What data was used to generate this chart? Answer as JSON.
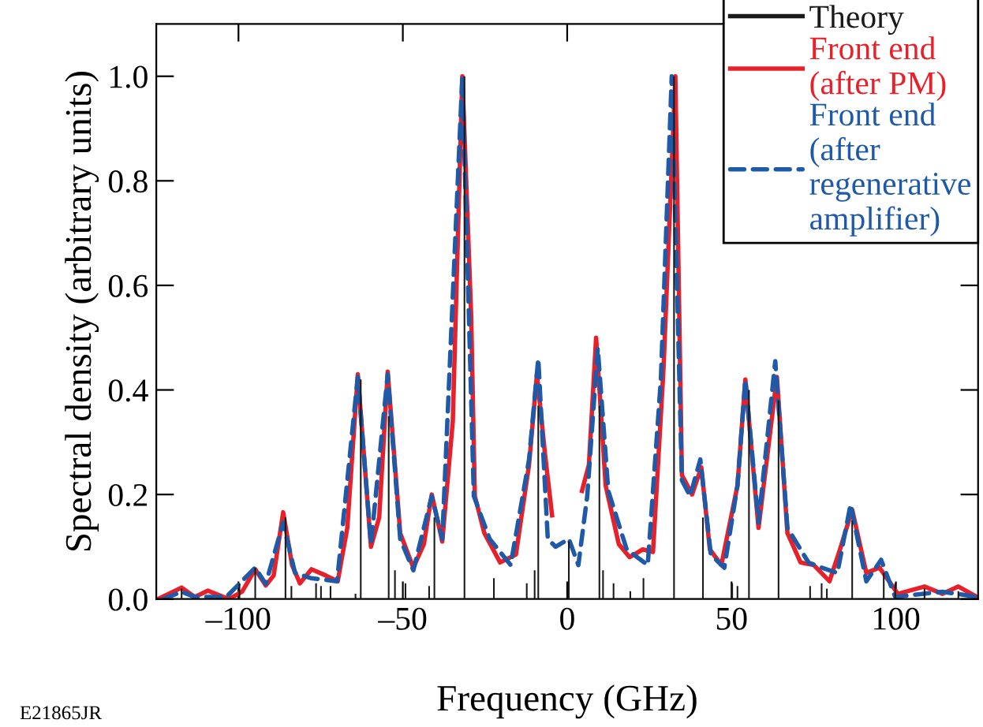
{
  "chart_data": {
    "type": "line",
    "xlabel": "Frequency (GHz)",
    "ylabel": "Spectral density (arbitrary units)",
    "xlim": [
      -125,
      125
    ],
    "ylim": [
      0,
      1.1
    ],
    "xticks": [
      {
        "value": -100,
        "label": "–100"
      },
      {
        "value": -50,
        "label": "–50"
      },
      0,
      50,
      100
    ],
    "yticks": [
      {
        "value": 0,
        "label": "0.0"
      },
      0.2,
      0.4,
      0.6,
      0.8,
      {
        "value": 1,
        "label": "1.0"
      }
    ],
    "grid": false,
    "legend": "top right",
    "marker": "none",
    "annotations": [
      "E21865JR"
    ],
    "series": [
      {
        "name": "Theory",
        "type": "bar",
        "color": "#1a1a1a",
        "x": [
          -117.3,
          -99.7,
          -94.9,
          -85.7,
          -83.9,
          -76.4,
          -74.9,
          -72.0,
          -64.4,
          -62.8,
          -54.3,
          -52.4,
          -49.2,
          -42.0,
          -40.4,
          -31.25,
          -22.3,
          -12.3,
          -9.9,
          -8.8,
          0.5,
          9.8,
          10.9,
          14.1,
          19.2,
          23.2,
          32.5,
          41.3,
          50.2,
          51.8,
          55.3,
          64.3,
          73.9,
          77.4,
          79.0,
          86.7,
          96.3,
          99.8,
          108.7,
          119.0
        ],
        "values": [
          0.02,
          0.03,
          0.06,
          0.156,
          0.025,
          0.03,
          0.025,
          0.025,
          0.01,
          0.42,
          0.35,
          0.055,
          0.03,
          0.025,
          0.156,
          1.0,
          0.04,
          0.03,
          0.055,
          0.37,
          0.11,
          0.37,
          0.055,
          0.03,
          0.015,
          0.04,
          1.0,
          0.156,
          0.03,
          0.025,
          0.4,
          0.38,
          0.025,
          0.03,
          0.02,
          0.15,
          0.05,
          0.03,
          0.02,
          0.015
        ]
      },
      {
        "name": "Front end\n(after PM)",
        "color": "#e8202a",
        "line_style": "solid",
        "x": [
          -124.5,
          -117.3,
          -113.3,
          -109.3,
          -102.9,
          -98.9,
          -94.9,
          -91.7,
          -89.3,
          -86.4,
          -83.7,
          -81.3,
          -77.8,
          -73.4,
          -69.8,
          -66.9,
          -63.7,
          -59.7,
          -57.2,
          -54.6,
          -50.8,
          -46.8,
          -43.6,
          -41.2,
          -38.0,
          -34.8,
          -31.9,
          -29.2,
          -28.1,
          -25.2,
          -20.4,
          -15.6,
          -11.6,
          -9.2,
          -6.8,
          -4.6,
          null,
          4.5,
          6.6,
          8.8,
          11.7,
          15.7,
          19.0,
          23.0,
          26.1,
          29.3,
          32.9,
          34.9,
          38.0,
          40.8,
          43.4,
          46.9,
          51.8,
          54.2,
          58.2,
          63.8,
          67.0,
          71.0,
          75.0,
          79.8,
          83.0,
          86.7,
          91.0,
          95.0,
          100.6,
          108.7,
          114.2,
          119.0,
          124.7
        ],
        "values": [
          0.0,
          0.022,
          0.004,
          0.016,
          0.0,
          0.014,
          0.057,
          0.026,
          0.045,
          0.166,
          0.065,
          0.03,
          0.057,
          0.045,
          0.034,
          0.136,
          0.43,
          0.1,
          0.156,
          0.435,
          0.126,
          0.06,
          0.105,
          0.2,
          0.11,
          0.34,
          1.0,
          0.54,
          0.197,
          0.126,
          0.07,
          0.085,
          0.257,
          0.43,
          0.28,
          0.16,
          null,
          0.207,
          0.257,
          0.5,
          0.217,
          0.105,
          0.08,
          0.095,
          0.09,
          0.44,
          1.0,
          0.237,
          0.2,
          0.252,
          0.095,
          0.065,
          0.217,
          0.42,
          0.136,
          0.425,
          0.126,
          0.07,
          0.065,
          0.034,
          0.095,
          0.171,
          0.05,
          0.06,
          0.01,
          0.024,
          0.01,
          0.024,
          0.004
        ]
      },
      {
        "name": "Front end\n(after\nregenerative\namplifier)",
        "color": "#1f5aa8",
        "line_style": "dashed",
        "x": [
          -122.9,
          -117.3,
          -113.3,
          -103.7,
          -94.9,
          -91.7,
          -86.4,
          -82.8,
          -78.0,
          -70.0,
          -63.7,
          -59.7,
          -54.6,
          -50.8,
          -46.8,
          -41.2,
          -38.0,
          -31.9,
          -28.4,
          -23.6,
          -17.2,
          -11.6,
          -8.8,
          -5.9,
          -3.5,
          0.5,
          3.4,
          6.1,
          9.3,
          12.5,
          18.1,
          24.5,
          28.5,
          31.8,
          34.9,
          37.4,
          40.5,
          43.7,
          47.8,
          51.8,
          54.2,
          58.2,
          63.3,
          67.0,
          73.4,
          77.4,
          82.2,
          86.2,
          91.0,
          95.5,
          99.8,
          114.2,
          124.7
        ],
        "values": [
          0.0,
          0.014,
          0.004,
          0.004,
          0.06,
          0.029,
          0.146,
          0.05,
          0.04,
          0.034,
          0.425,
          0.105,
          0.43,
          0.115,
          0.055,
          0.197,
          0.115,
          1.0,
          0.197,
          0.115,
          0.065,
          0.267,
          0.46,
          0.115,
          0.1,
          0.115,
          0.065,
          0.197,
          0.48,
          0.207,
          0.095,
          0.065,
          0.42,
          1.0,
          0.227,
          0.197,
          0.267,
          0.085,
          0.06,
          0.217,
          0.42,
          0.146,
          0.455,
          0.136,
          0.07,
          0.06,
          0.05,
          0.181,
          0.034,
          0.075,
          0.004,
          0.014,
          0.004
        ]
      }
    ]
  }
}
